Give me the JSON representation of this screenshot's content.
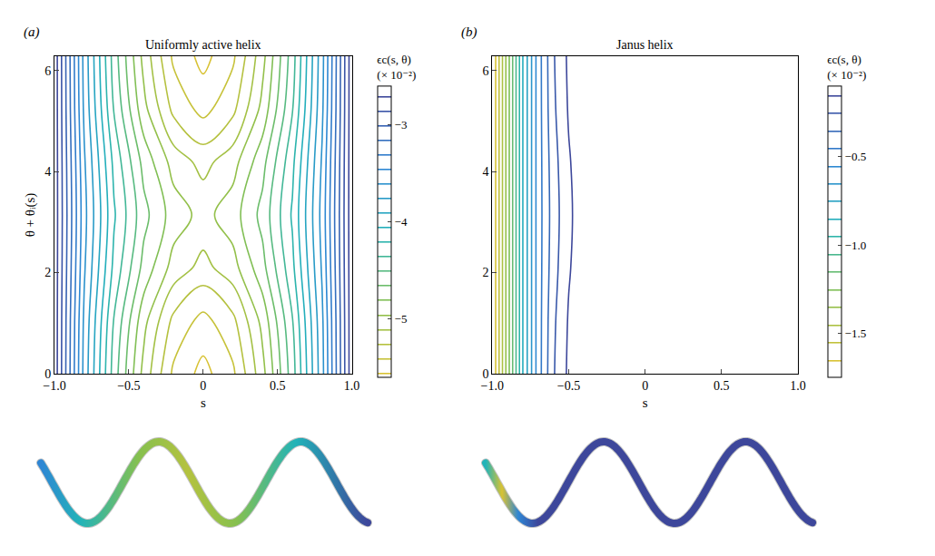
{
  "chart_data": [
    {
      "type": "contour",
      "panel_label": "(a)",
      "title": "Uniformly active helix",
      "x_label": "s",
      "y_label": "θ + θᵢ(s)",
      "x": [
        -1,
        -0.8,
        -0.6,
        -0.4,
        -0.2,
        0,
        0.2,
        0.4,
        0.6,
        0.8,
        1
      ],
      "y": [
        0,
        1.047,
        2.094,
        3.142,
        4.189,
        5.236,
        6.283
      ],
      "z": [
        [
          -2.6,
          -3.65,
          -4.42,
          -5.0,
          -5.43,
          -5.6,
          -5.43,
          -5.0,
          -4.42,
          -3.65,
          -2.6
        ],
        [
          -2.6,
          -3.63,
          -4.36,
          -4.9,
          -5.29,
          -5.45,
          -5.29,
          -4.9,
          -4.36,
          -3.63,
          -2.6
        ],
        [
          -2.6,
          -3.58,
          -4.24,
          -4.7,
          -5.01,
          -5.15,
          -5.01,
          -4.7,
          -4.24,
          -3.58,
          -2.6
        ],
        [
          -2.6,
          -3.55,
          -4.18,
          -4.6,
          -4.87,
          -5.0,
          -4.87,
          -4.6,
          -4.18,
          -3.55,
          -2.6
        ],
        [
          -2.6,
          -3.58,
          -4.24,
          -4.7,
          -5.01,
          -5.15,
          -5.01,
          -4.7,
          -4.24,
          -3.58,
          -2.6
        ],
        [
          -2.6,
          -3.63,
          -4.36,
          -4.9,
          -5.29,
          -5.45,
          -5.29,
          -4.9,
          -4.36,
          -3.63,
          -2.6
        ],
        [
          -2.6,
          -3.65,
          -4.42,
          -5.0,
          -5.43,
          -5.6,
          -5.43,
          -5.0,
          -4.42,
          -3.65,
          -2.6
        ]
      ],
      "levels": {
        "start": -5.55,
        "end": -2.65,
        "size": 0.15
      },
      "xlim": [
        -1,
        1
      ],
      "ylim": [
        0,
        6.283
      ],
      "xticks": [
        {
          "value": -1,
          "label": "−1.0"
        },
        {
          "value": -0.5,
          "label": "−0.5"
        },
        0,
        0.5,
        {
          "value": 1,
          "label": "1.0"
        }
      ],
      "yticks": [
        0,
        2,
        4,
        6
      ],
      "colorbar_title": "ϵc(s, θ)",
      "colorbar_unit": "(× 10⁻²)",
      "colorbar_range": [
        -5.6,
        -2.6
      ],
      "colorbar_ticks": [
        {
          "value": -5,
          "label": "−5"
        },
        {
          "value": -4,
          "label": "−4"
        },
        {
          "value": -3,
          "label": "−3"
        }
      ]
    },
    {
      "type": "contour",
      "panel_label": "(b)",
      "title": "Janus helix",
      "x_label": "s",
      "x": [
        -1,
        -0.9,
        -0.8,
        -0.7,
        -0.6,
        -0.5,
        -0.4,
        -0.2,
        0,
        0.5,
        1
      ],
      "y": [
        0,
        1.047,
        2.094,
        3.142,
        4.189,
        5.236,
        6.283
      ],
      "z": [
        [
          -1.75,
          -1.3,
          -0.85,
          -0.5,
          -0.26,
          -0.13,
          -0.07,
          -0.04,
          -0.03,
          -0.02,
          -0.01
        ],
        [
          -1.75,
          -1.3,
          -0.85,
          -0.5,
          -0.27,
          -0.14,
          -0.075,
          -0.04,
          -0.03,
          -0.02,
          -0.01
        ],
        [
          -1.75,
          -1.3,
          -0.85,
          -0.5,
          -0.29,
          -0.16,
          -0.085,
          -0.04,
          -0.03,
          -0.02,
          -0.01
        ],
        [
          -1.75,
          -1.3,
          -0.85,
          -0.5,
          -0.3,
          -0.17,
          -0.09,
          -0.04,
          -0.03,
          -0.02,
          -0.01
        ],
        [
          -1.75,
          -1.3,
          -0.85,
          -0.5,
          -0.29,
          -0.16,
          -0.085,
          -0.04,
          -0.03,
          -0.02,
          -0.01
        ],
        [
          -1.75,
          -1.3,
          -0.85,
          -0.5,
          -0.27,
          -0.14,
          -0.075,
          -0.04,
          -0.03,
          -0.02,
          -0.01
        ],
        [
          -1.75,
          -1.3,
          -0.85,
          -0.5,
          -0.26,
          -0.13,
          -0.07,
          -0.04,
          -0.03,
          -0.02,
          -0.01
        ]
      ],
      "levels": {
        "start": -1.65,
        "end": -0.15,
        "size": 0.1
      },
      "xlim": [
        -1,
        1
      ],
      "ylim": [
        0,
        6.283
      ],
      "xticks": [
        {
          "value": -1,
          "label": "−1.0"
        },
        {
          "value": -0.5,
          "label": "−0.5"
        },
        0,
        0.5,
        {
          "value": 1,
          "label": "1.0"
        }
      ],
      "yticks": [
        0,
        2,
        4,
        6
      ],
      "colorbar_title": "ϵc(s, θ)",
      "colorbar_unit": "(× 10⁻²)",
      "colorbar_range": [
        -1.75,
        -0.1
      ],
      "colorbar_ticks": [
        {
          "value": -1.5,
          "label": "−1.5"
        },
        {
          "value": -1,
          "label": "−1.0"
        },
        {
          "value": -0.5,
          "label": "−0.5"
        }
      ]
    }
  ]
}
